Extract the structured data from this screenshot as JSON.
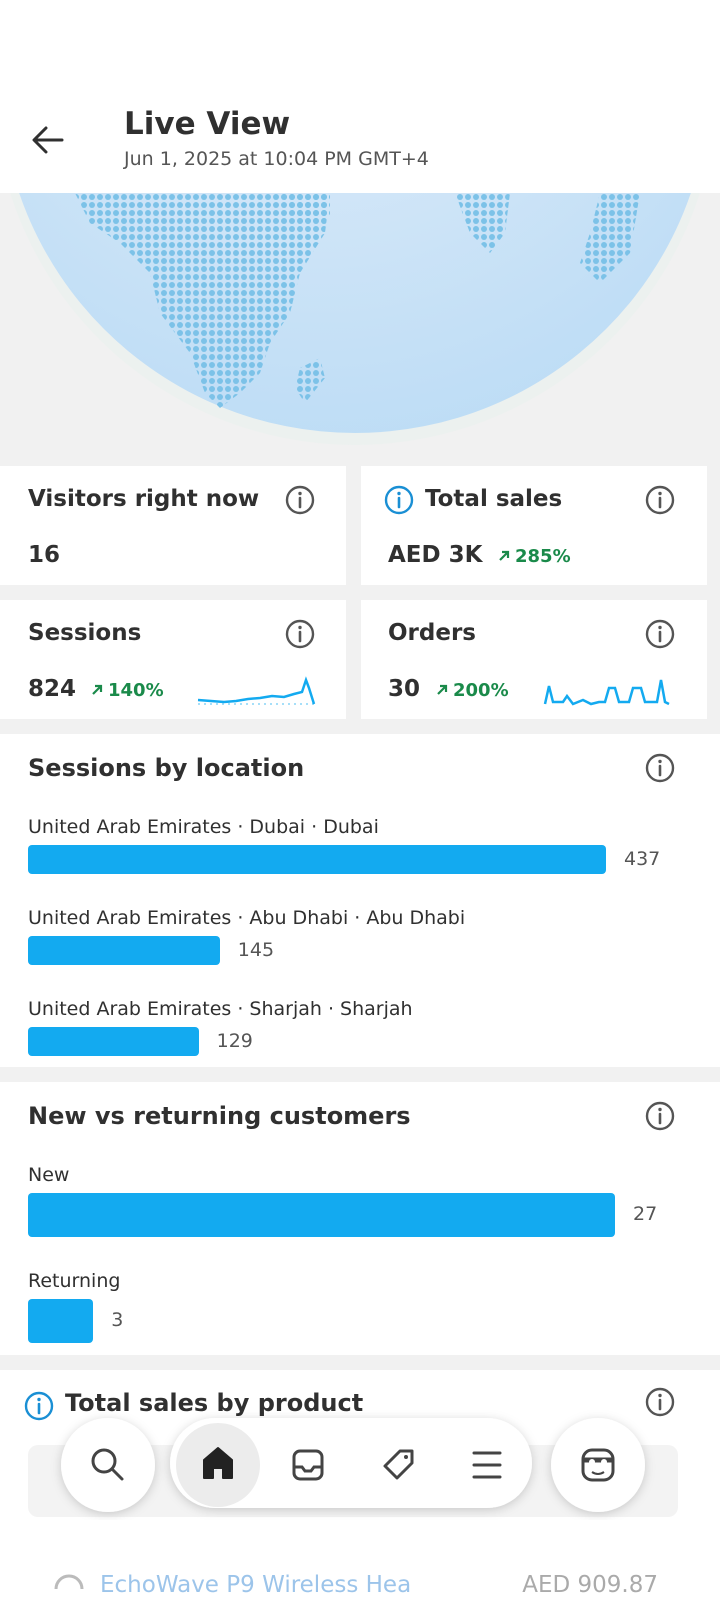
{
  "header": {
    "title": "Live View",
    "subtitle": "Jun 1, 2025 at 10:04 PM GMT+4"
  },
  "metrics": [
    {
      "label": "Visitors right now",
      "value": "16"
    },
    {
      "label": "Total sales",
      "value": "AED 3K",
      "change": "285%"
    },
    {
      "label": "Sessions",
      "value": "824",
      "change": "140%"
    },
    {
      "label": "Orders",
      "value": "30",
      "change": "200%"
    }
  ],
  "sessions_by_location": {
    "title": "Sessions by location",
    "rows": [
      {
        "label": "United Arab Emirates · Dubai · Dubai",
        "value": 437
      },
      {
        "label": "United Arab Emirates · Abu Dhabi · Abu Dhabi",
        "value": 145
      },
      {
        "label": "United Arab Emirates · Sharjah · Sharjah",
        "value": 129
      }
    ]
  },
  "customers": {
    "title": "New vs returning customers",
    "rows": [
      {
        "label": "New",
        "value": 27
      },
      {
        "label": "Returning",
        "value": 3
      }
    ]
  },
  "products": {
    "title": "Total sales by product",
    "rows": [
      {
        "name": "EchoWave P9 Wireless Hea",
        "sales": "AED 909.87"
      }
    ]
  }
}
